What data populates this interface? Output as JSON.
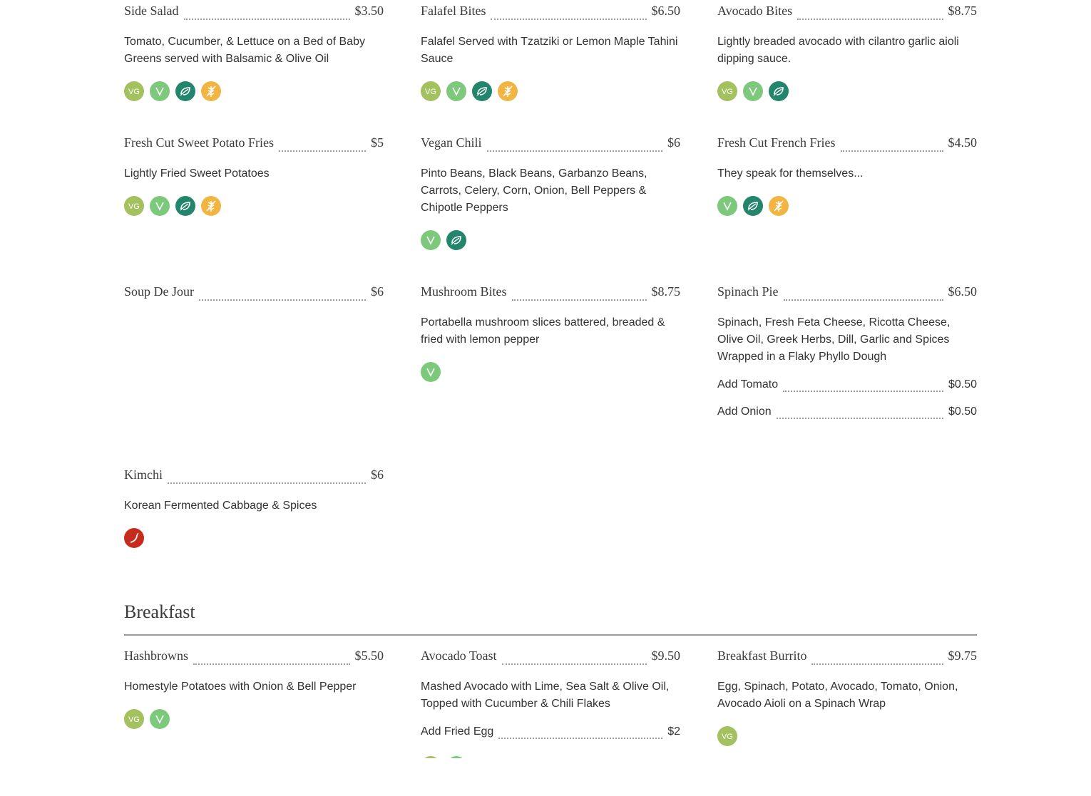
{
  "items": {
    "side_salad": {
      "name": "Side Salad",
      "price": "$3.50",
      "desc": "Tomato, Cucumber, & Lettuce on a Bed of Baby Greens served with Balsamic & Olive Oil"
    },
    "falafel_bites": {
      "name": "Falafel Bites",
      "price": "$6.50",
      "desc": "Falafel Served with Tzatziki or Lemon Maple Tahini Sauce"
    },
    "avocado_bites": {
      "name": "Avocado Bites",
      "price": "$8.75",
      "desc": "Lightly breaded avocado with cilantro garlic aioli dipping sauce."
    },
    "sweet_potato_fries": {
      "name": "Fresh Cut Sweet Potato Fries",
      "price": "$5",
      "desc": "Lightly Fried Sweet Potatoes"
    },
    "vegan_chili": {
      "name": "Vegan Chili",
      "price": "$6",
      "desc": "Pinto Beans, Black Beans, Garbanzo Beans, Carrots, Celery, Corn, Onion, Bell Peppers & Chipotle Peppers"
    },
    "french_fries": {
      "name": "Fresh Cut French Fries",
      "price": "$4.50",
      "desc": "They speak for themselves..."
    },
    "soup_de_jour": {
      "name": "Soup De Jour",
      "price": "$6"
    },
    "mushroom_bites": {
      "name": "Mushroom Bites",
      "price": "$8.75",
      "desc": "Portabella mushroom slices battered, breaded & fried with lemon pepper"
    },
    "spinach_pie": {
      "name": "Spinach Pie",
      "price": "$6.50",
      "desc": "Spinach, Fresh Feta Cheese, Ricotta Cheese, Olive Oil, Greek Herbs, Dill, Garlic and Spices Wrapped in a Flaky Phyllo Dough",
      "addons": [
        {
          "name": "Add Tomato",
          "price": "$0.50"
        },
        {
          "name": "Add Onion",
          "price": "$0.50"
        }
      ]
    },
    "kimchi": {
      "name": "Kimchi",
      "price": "$6",
      "desc": "Korean Fermented Cabbage & Spices"
    },
    "hashbrowns": {
      "name": "Hashbrowns",
      "price": "$5.50",
      "desc": "Homestyle Potatoes with Onion & Bell Pepper"
    },
    "avocado_toast": {
      "name": "Avocado Toast",
      "price": "$9.50",
      "desc": "Mashed Avocado with Lime, Sea Salt & Olive Oil, Topped with Cucumber & Chili Flakes",
      "addons": [
        {
          "name": "Add Fried Egg",
          "price": "$2"
        }
      ]
    },
    "breakfast_burrito": {
      "name": "Breakfast Burrito",
      "price": "$9.75",
      "desc": "Egg, Spinach, Potato, Avocado, Tomato, Onion, Avocado Aioli on a Spinach Wrap"
    }
  },
  "sections": {
    "breakfast": "Breakfast"
  },
  "icons": {
    "vg": "VG",
    "v": "V"
  },
  "colors": {
    "vegetarian": "#a3c15e",
    "vegan": "#7dc97b",
    "plant_based": "#23856c",
    "gluten_free": "#f2b543",
    "spicy": "#c62b1d",
    "rule": "#9a9a9a"
  }
}
